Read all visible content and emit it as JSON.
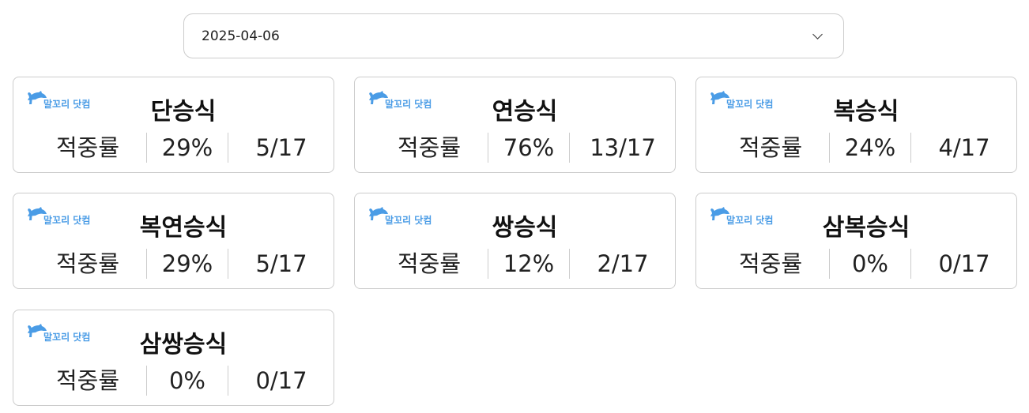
{
  "date_select": {
    "value": "2025-04-06"
  },
  "logo_text": "말꼬리 닷컴",
  "stat_label": "적중률",
  "cards": [
    {
      "title": "단승식",
      "rate": "29%",
      "count": "5/17"
    },
    {
      "title": "연승식",
      "rate": "76%",
      "count": "13/17"
    },
    {
      "title": "복승식",
      "rate": "24%",
      "count": "4/17"
    },
    {
      "title": "복연승식",
      "rate": "29%",
      "count": "5/17"
    },
    {
      "title": "쌍승식",
      "rate": "12%",
      "count": "2/17"
    },
    {
      "title": "삼복승식",
      "rate": "0%",
      "count": "0/17"
    },
    {
      "title": "삼쌍승식",
      "rate": "0%",
      "count": "0/17"
    }
  ],
  "colors": {
    "logo": "#4a9ce6",
    "border": "#cccccc"
  }
}
